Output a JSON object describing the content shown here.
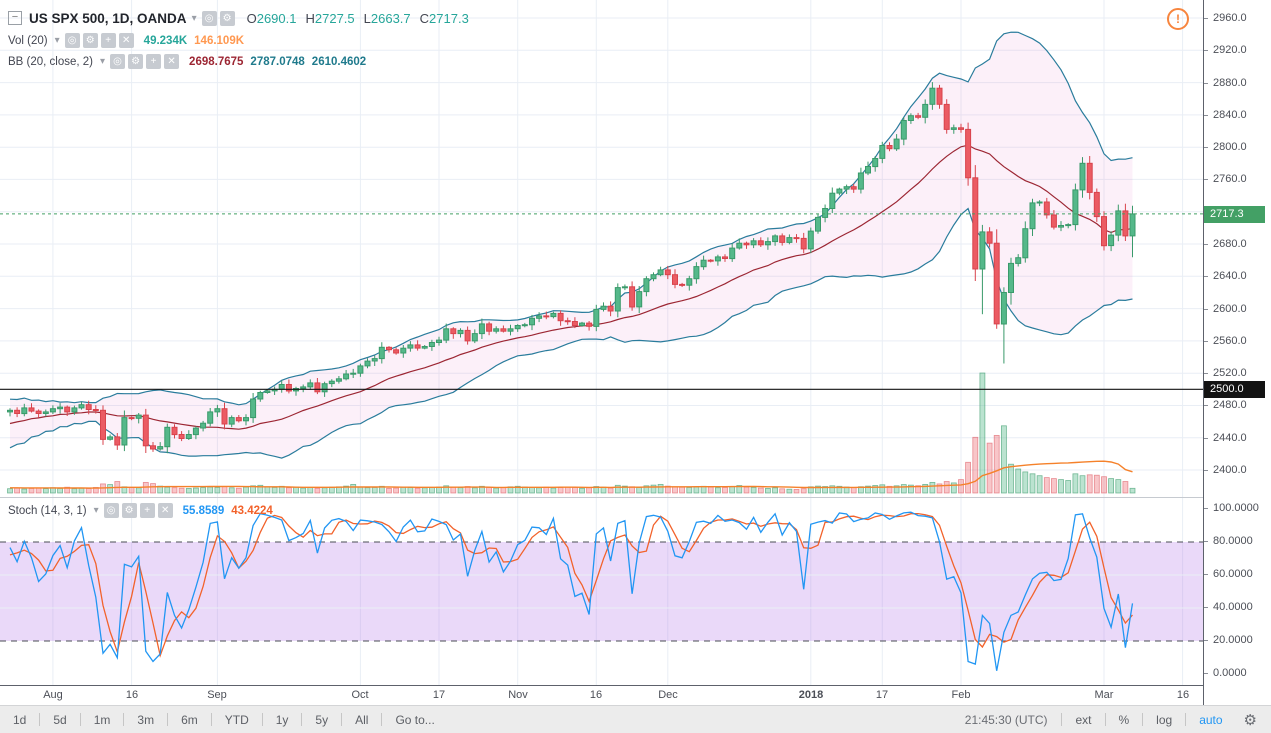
{
  "glyphs": {
    "caret": "▾",
    "eye": "◎",
    "gear": "⚙",
    "plus": "+",
    "close": "✕",
    "collapse": "−",
    "alert": "!"
  },
  "colors": {
    "grid": "#e9eef5",
    "up": "#55b88a",
    "up_b": "#399a6a",
    "dn": "#eb5b63",
    "dn_b": "#d8434c",
    "vol_up": "rgba(85,184,138,0.40)",
    "vol_up_b": "rgba(57,154,106,0.65)",
    "vol_dn": "rgba(235,91,99,0.35)",
    "vol_dn_b": "rgba(216,67,76,0.55)",
    "vol_ma": "#f5812a",
    "bb_band": "#2a7c9c",
    "bb_basis": "#9c2633",
    "bb_fill": "rgba(226,109,192,0.10)",
    "stoch_k": "#2196f3",
    "stoch_d": "#f2622b",
    "stoch_fill": "rgba(180,120,235,0.28)",
    "stoch_dash": "#4a4d55",
    "hline": "#131313",
    "last": "#43a065",
    "ohlc_val": "#26a69a",
    "vol_val2": "#ff9850",
    "bb_val_band": "#1f7a8c",
    "accent_blue": "#2196f3"
  },
  "symbol_row": {
    "title": "US SPX 500, 1D, OANDA",
    "o_label": "O",
    "o": "2690.1",
    "h_label": "H",
    "h": "2727.5",
    "l_label": "L",
    "l": "2663.7",
    "c_label": "C",
    "c": "2717.3"
  },
  "vol_row": {
    "label": "Vol (20)",
    "v1": "49.234K",
    "v2": "146.109K"
  },
  "bb_row": {
    "label": "BB (20, close, 2)",
    "v1": "2698.7675",
    "v2": "2787.0748",
    "v3": "2610.4602"
  },
  "stoch_row": {
    "label": "Stoch (14, 3, 1)",
    "v1": "55.8589",
    "v2": "43.4224"
  },
  "price_axis": {
    "labels": [
      {
        "t": "2960.0",
        "v": 2960
      },
      {
        "t": "2920.0",
        "v": 2920
      },
      {
        "t": "2880.0",
        "v": 2880
      },
      {
        "t": "2840.0",
        "v": 2840
      },
      {
        "t": "2800.0",
        "v": 2800
      },
      {
        "t": "2760.0",
        "v": 2760
      },
      {
        "t": "2680.0",
        "v": 2680
      },
      {
        "t": "2640.0",
        "v": 2640
      },
      {
        "t": "2600.0",
        "v": 2600
      },
      {
        "t": "2560.0",
        "v": 2560
      },
      {
        "t": "2520.0",
        "v": 2520
      },
      {
        "t": "2480.0",
        "v": 2480
      },
      {
        "t": "2440.0",
        "v": 2440
      },
      {
        "t": "2400.0",
        "v": 2400
      }
    ],
    "last_badge": "2717.3",
    "hline_badge": "2500.0"
  },
  "stoch_axis": {
    "labels": [
      {
        "t": "100.0000",
        "v": 100
      },
      {
        "t": "80.0000",
        "v": 80
      },
      {
        "t": "60.0000",
        "v": 60
      },
      {
        "t": "40.0000",
        "v": 40
      },
      {
        "t": "20.0000",
        "v": 20
      },
      {
        "t": "0.0000",
        "v": 0
      }
    ]
  },
  "toolbar": {
    "ranges": [
      "1d",
      "5d",
      "1m",
      "3m",
      "6m",
      "YTD",
      "1y",
      "5y",
      "All",
      "Go to..."
    ],
    "clock": "21:45:30 (UTC)",
    "ext": "ext",
    "pct": "%",
    "log": "log",
    "auto": "auto"
  },
  "chart_data": {
    "type": "candlestick",
    "symbol": "US SPX 500",
    "interval": "1D",
    "exchange": "OANDA",
    "title": "US SPX 500, 1D, OANDA",
    "last_price": 2717.3,
    "hline": 2500,
    "price_ylim": [
      2366.6,
      2982.3
    ],
    "price_grid": [
      2400,
      2440,
      2480,
      2520,
      2560,
      2600,
      2640,
      2680,
      2720,
      2760,
      2800,
      2840,
      2880,
      2920,
      2960
    ],
    "stoch_ylim": [
      0,
      100
    ],
    "stoch_band": [
      20,
      80
    ],
    "indicators": {
      "bb": {
        "length": 20,
        "source": "close",
        "mult": 2
      },
      "vol_ma": {
        "length": 20
      },
      "stoch": {
        "k": 14,
        "d": 3,
        "smooth": 1
      }
    },
    "x_ticks": [
      {
        "label": "Aug",
        "i": 6
      },
      {
        "label": "16",
        "i": 17
      },
      {
        "label": "Sep",
        "i": 29
      },
      {
        "label": "Oct",
        "i": 49
      },
      {
        "label": "17",
        "i": 60
      },
      {
        "label": "Nov",
        "i": 71
      },
      {
        "label": "16",
        "i": 82
      },
      {
        "label": "Dec",
        "i": 92
      },
      {
        "label": "2018",
        "i": 112,
        "b": true
      },
      {
        "label": "17",
        "i": 122
      },
      {
        "label": "Feb",
        "i": 133
      },
      {
        "label": "Mar",
        "i": 153
      },
      {
        "label": "16",
        "i": 164
      }
    ],
    "first_open": 2472,
    "pre_closes": [
      2430,
      2445,
      2425,
      2450,
      2438,
      2460,
      2442,
      2468,
      2450,
      2472,
      2455,
      2475,
      2460,
      2478,
      2465,
      2470,
      2458,
      2466,
      2472
    ],
    "closes": [
      2474,
      2470,
      2477,
      2473,
      2470,
      2472,
      2476,
      2478,
      2472,
      2477,
      2481,
      2475,
      2474,
      2438,
      2441,
      2431,
      2465,
      2464,
      2468,
      2430,
      2426,
      2429,
      2453,
      2444,
      2439,
      2444,
      2452,
      2458,
      2472,
      2476,
      2457,
      2465,
      2461,
      2465,
      2488,
      2496,
      2498,
      2500,
      2506,
      2498,
      2501,
      2503,
      2508,
      2497,
      2507,
      2510,
      2513,
      2519,
      2520,
      2529,
      2535,
      2538,
      2552,
      2549,
      2545,
      2551,
      2555,
      2551,
      2553,
      2558,
      2561,
      2575,
      2569,
      2573,
      2560,
      2569,
      2581,
      2572,
      2575,
      2572,
      2575,
      2579,
      2580,
      2588,
      2591,
      2590,
      2594,
      2585,
      2584,
      2579,
      2582,
      2578,
      2599,
      2603,
      2597,
      2626,
      2627,
      2602,
      2621,
      2637,
      2642,
      2648,
      2642,
      2630,
      2629,
      2637,
      2652,
      2660,
      2659,
      2664,
      2662,
      2675,
      2681,
      2679,
      2684,
      2679,
      2683,
      2690,
      2682,
      2688,
      2687,
      2674,
      2696,
      2713,
      2724,
      2743,
      2748,
      2751,
      2748,
      2768,
      2776,
      2786,
      2802,
      2798,
      2810,
      2833,
      2839,
      2837,
      2853,
      2873,
      2853,
      2822,
      2824,
      2822,
      2762,
      2649,
      2695,
      2681,
      2581,
      2620,
      2656,
      2663,
      2699,
      2731,
      2732,
      2716,
      2701,
      2703,
      2704,
      2747,
      2780,
      2744,
      2714,
      2678,
      2691,
      2721,
      2690,
      2717.3
    ],
    "volumes": [
      45,
      50,
      42,
      48,
      52,
      46,
      55,
      48,
      60,
      45,
      50,
      47,
      58,
      95,
      88,
      120,
      65,
      58,
      54,
      110,
      98,
      72,
      60,
      55,
      50,
      48,
      52,
      57,
      62,
      58,
      66,
      54,
      50,
      62,
      75,
      80,
      64,
      58,
      70,
      55,
      60,
      52,
      58,
      49,
      54,
      60,
      65,
      72,
      90,
      62,
      55,
      58,
      70,
      48,
      52,
      60,
      56,
      50,
      54,
      58,
      62,
      75,
      60,
      55,
      68,
      54,
      70,
      58,
      52,
      56,
      65,
      70,
      62,
      58,
      54,
      60,
      52,
      56,
      64,
      58,
      50,
      55,
      68,
      60,
      52,
      80,
      72,
      66,
      58,
      75,
      82,
      90,
      72,
      65,
      60,
      58,
      64,
      70,
      62,
      55,
      58,
      66,
      78,
      62,
      58,
      52,
      48,
      54,
      44,
      40,
      38,
      45,
      65,
      72,
      68,
      75,
      70,
      62,
      58,
      66,
      72,
      78,
      85,
      70,
      75,
      88,
      82,
      76,
      90,
      110,
      95,
      120,
      105,
      140,
      320,
      580,
      1250,
      520,
      600,
      700,
      300,
      250,
      220,
      200,
      180,
      160,
      150,
      140,
      130,
      200,
      180,
      190,
      185,
      170,
      150,
      140,
      120,
      49.234
    ],
    "wick_overrides": {
      "136": {
        "low": 2593
      },
      "138": {
        "low": 2575
      },
      "139": {
        "low": 2532
      },
      "140": {
        "low": 2605
      },
      "157": {
        "low": 2663.7,
        "high": 2727.5
      }
    }
  }
}
